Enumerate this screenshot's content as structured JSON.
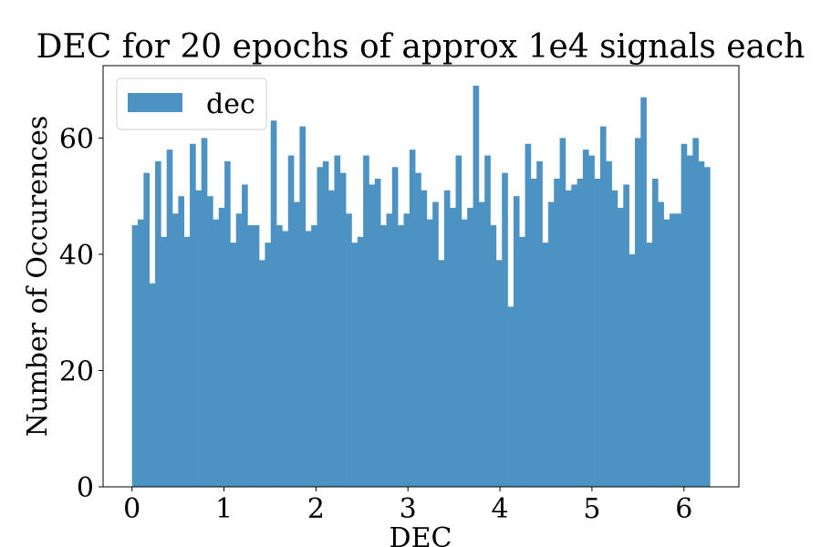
{
  "chart_data": {
    "type": "bar",
    "title": "DEC for 20 epochs of approx 1e4 signals each",
    "xlabel": "DEC",
    "ylabel": "Number of Occurences",
    "xlim": [
      -0.3142,
      6.5973
    ],
    "ylim": [
      0,
      72.45
    ],
    "x_ticks": [
      0,
      1,
      2,
      3,
      4,
      5,
      6
    ],
    "x_tick_labels": [
      "0",
      "1",
      "2",
      "3",
      "4",
      "5",
      "6"
    ],
    "y_ticks": [
      0,
      20,
      40,
      60
    ],
    "y_tick_labels": [
      "0",
      "20",
      "40",
      "60"
    ],
    "grid": false,
    "legend_position": "top-left",
    "bin_start": 0,
    "bin_end": 6.2832,
    "series": [
      {
        "name": "dec",
        "color": "#4c92c3",
        "values": [
          45,
          46,
          54,
          35,
          56,
          43,
          58,
          47,
          50,
          43,
          59,
          51,
          60,
          50,
          46,
          48,
          56,
          42,
          47,
          52,
          45,
          45,
          39,
          42,
          63,
          45,
          44,
          57,
          49,
          62,
          44,
          45,
          55,
          56,
          51,
          57,
          54,
          47,
          42,
          43,
          57,
          52,
          53,
          45,
          47,
          55,
          45,
          47,
          58,
          54,
          51,
          46,
          49,
          39,
          51,
          48,
          57,
          46,
          48,
          69,
          49,
          57,
          45,
          39,
          54,
          31,
          50,
          43,
          59,
          53,
          56,
          42,
          49,
          53,
          60,
          51,
          52,
          53,
          58,
          57,
          53,
          62,
          56,
          51,
          48,
          52,
          40,
          60,
          67,
          42,
          53,
          49,
          46,
          47,
          47,
          59,
          57,
          60,
          56,
          55
        ]
      }
    ]
  }
}
